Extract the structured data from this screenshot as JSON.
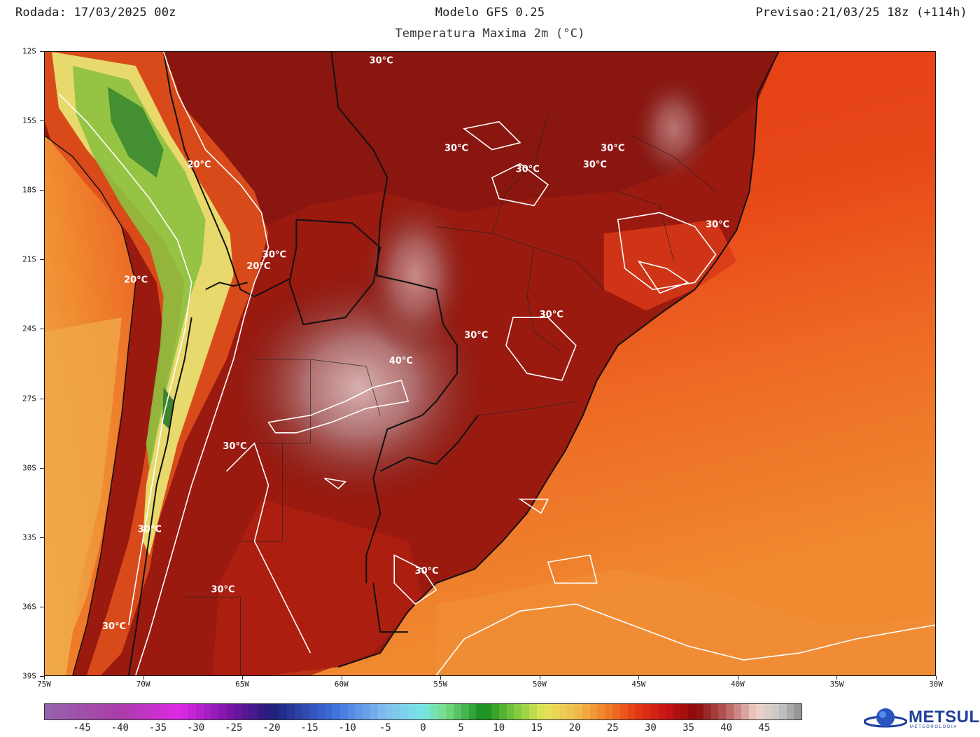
{
  "header": {
    "run": "Rodada: 17/03/2025 00z",
    "model": "Modelo GFS 0.25",
    "forecast": "Previsao:21/03/25 18z (+114h)",
    "variable": "Temperatura Maxima 2m (°C)"
  },
  "map": {
    "lat_range": [
      -39,
      -12
    ],
    "lon_range": [
      -75,
      -30
    ],
    "lat_ticks": [
      {
        "value": -12,
        "label": "12S"
      },
      {
        "value": -15,
        "label": "15S"
      },
      {
        "value": -18,
        "label": "18S"
      },
      {
        "value": -21,
        "label": "21S"
      },
      {
        "value": -24,
        "label": "24S"
      },
      {
        "value": -27,
        "label": "27S"
      },
      {
        "value": -30,
        "label": "30S"
      },
      {
        "value": -33,
        "label": "33S"
      },
      {
        "value": -36,
        "label": "36S"
      },
      {
        "value": -39,
        "label": "39S"
      }
    ],
    "lon_ticks": [
      {
        "value": -75,
        "label": "75W"
      },
      {
        "value": -70,
        "label": "70W"
      },
      {
        "value": -65,
        "label": "65W"
      },
      {
        "value": -60,
        "label": "60W"
      },
      {
        "value": -55,
        "label": "55W"
      },
      {
        "value": -50,
        "label": "50W"
      },
      {
        "value": -45,
        "label": "45W"
      },
      {
        "value": -40,
        "label": "40W"
      },
      {
        "value": -35,
        "label": "35W"
      },
      {
        "value": -30,
        "label": "30W"
      }
    ],
    "contour_labels": [
      {
        "text": "30°C",
        "lon": -58.6,
        "lat": -12.5
      },
      {
        "text": "30°C",
        "lon": -54.8,
        "lat": -16.3
      },
      {
        "text": "30°C",
        "lon": -46.9,
        "lat": -16.3
      },
      {
        "text": "30°C",
        "lon": -51.2,
        "lat": -17.2
      },
      {
        "text": "30°C",
        "lon": -47.8,
        "lat": -17.0
      },
      {
        "text": "30°C",
        "lon": -41.6,
        "lat": -19.6
      },
      {
        "text": "20°C",
        "lon": -67.8,
        "lat": -17.0
      },
      {
        "text": "30°C",
        "lon": -64.0,
        "lat": -20.9
      },
      {
        "text": "20°C",
        "lon": -64.8,
        "lat": -21.4
      },
      {
        "text": "20°C",
        "lon": -71.0,
        "lat": -22.0
      },
      {
        "text": "30°C",
        "lon": -50.0,
        "lat": -23.5
      },
      {
        "text": "30°C",
        "lon": -53.8,
        "lat": -24.4
      },
      {
        "text": "40°C",
        "lon": -57.6,
        "lat": -25.5
      },
      {
        "text": "30°C",
        "lon": -66.0,
        "lat": -29.2
      },
      {
        "text": "30°C",
        "lon": -70.3,
        "lat": -32.8
      },
      {
        "text": "30°C",
        "lon": -66.6,
        "lat": -35.4
      },
      {
        "text": "30°C",
        "lon": -56.3,
        "lat": -34.6
      },
      {
        "text": "30°C",
        "lon": -72.1,
        "lat": -37.0
      }
    ]
  },
  "colorbar": {
    "min": -50,
    "max": 50,
    "step": 1,
    "labels": [
      "-45",
      "-40",
      "-35",
      "-30",
      "-25",
      "-20",
      "-15",
      "-10",
      "-5",
      "0",
      "5",
      "10",
      "15",
      "20",
      "25",
      "30",
      "35",
      "40",
      "45"
    ],
    "label_values": [
      -45,
      -40,
      -35,
      -30,
      -25,
      -20,
      -15,
      -10,
      -5,
      0,
      5,
      10,
      15,
      20,
      25,
      30,
      35,
      40,
      45
    ]
  },
  "logo": {
    "name": "METSUL",
    "sub": "METEOROLOGIA"
  },
  "colors": {
    "ocean_warm": "#e84818",
    "ocean_mild": "#f08a30",
    "ocean_cool": "#f0b050",
    "land_hot": "#8a1410",
    "land_very_hot": "#a05850",
    "land_extreme": "#c8a0a0",
    "andes_green": "#5aa838",
    "andes_yellow": "#e8e870",
    "brand": "#1f3f9a"
  }
}
